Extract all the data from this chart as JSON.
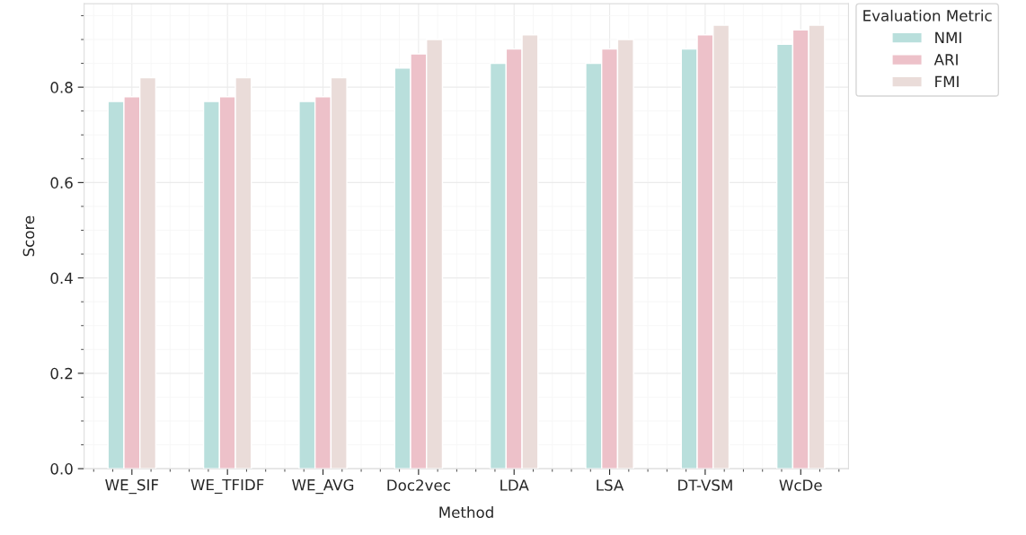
{
  "chart_data": {
    "type": "bar",
    "xlabel": "Method",
    "ylabel": "Score",
    "legend_title": "Evaluation Metric",
    "categories": [
      "WE_SIF",
      "WE_TFIDF",
      "WE_AVG",
      "Doc2vec",
      "LDA",
      "LSA",
      "DT-VSM",
      "WcDe"
    ],
    "series": [
      {
        "name": "NMI",
        "color": "#b9dfdc",
        "values": [
          0.77,
          0.77,
          0.77,
          0.84,
          0.85,
          0.85,
          0.88,
          0.89
        ]
      },
      {
        "name": "ARI",
        "color": "#edc1c9",
        "values": [
          0.78,
          0.78,
          0.78,
          0.87,
          0.88,
          0.88,
          0.91,
          0.92
        ]
      },
      {
        "name": "FMI",
        "color": "#eadcd9",
        "values": [
          0.82,
          0.82,
          0.82,
          0.9,
          0.91,
          0.9,
          0.93,
          0.93
        ]
      }
    ],
    "ylim": [
      0,
      0.975
    ],
    "yticks": [
      {
        "value": 0,
        "label": "0.0"
      },
      0.2,
      0.4,
      0.6,
      0.8
    ],
    "grid": true,
    "legend": "top right"
  }
}
